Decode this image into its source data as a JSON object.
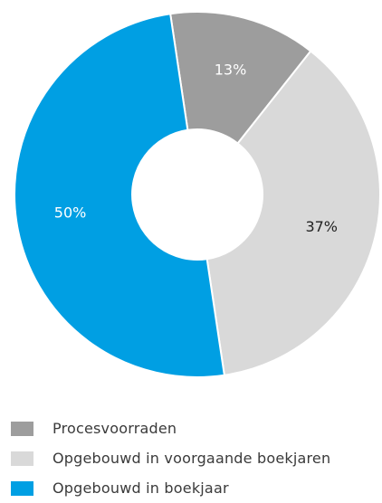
{
  "chart_data": {
    "type": "pie",
    "donut": true,
    "categories": [
      "Procesvoorraden",
      "Opgebouwd in voorgaande boekjaren",
      "Opgebouwd in boekjaar"
    ],
    "values": [
      13,
      37,
      50
    ],
    "labels": [
      "13%",
      "37%",
      "50%"
    ],
    "colors": [
      "#9d9d9d",
      "#d9d9d9",
      "#009fe3"
    ],
    "label_colors": [
      "#ffffff",
      "#222222",
      "#ffffff"
    ],
    "legend": "bottom-left"
  }
}
